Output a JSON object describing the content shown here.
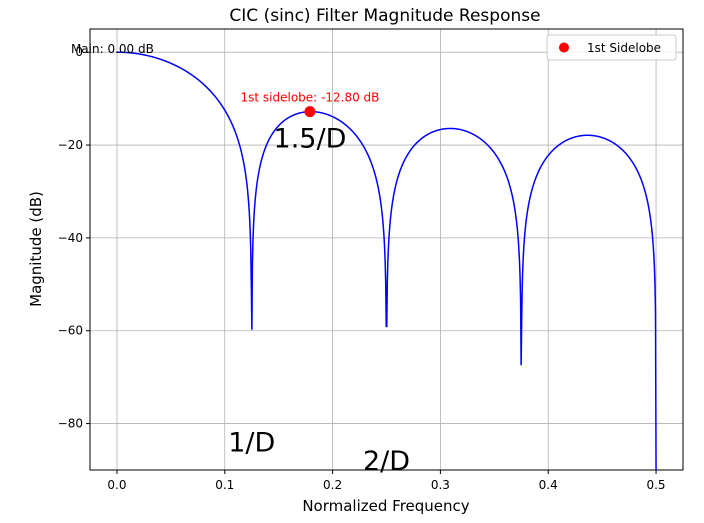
{
  "chart_data": {
    "type": "line",
    "title": "CIC (sinc) Filter Magnitude Response",
    "xlabel": "Normalized Frequency",
    "ylabel": "Magnitude (dB)",
    "xlim": [
      -0.025,
      0.525
    ],
    "ylim": [
      -90,
      5
    ],
    "xticks": [
      0.0,
      0.1,
      0.2,
      0.3,
      0.4,
      0.5
    ],
    "xtick_labels": [
      "0.0",
      "0.1",
      "0.2",
      "0.3",
      "0.4",
      "0.5"
    ],
    "yticks": [
      -80,
      -60,
      -40,
      -20,
      0
    ],
    "ytick_labels": [
      "−80",
      "−60",
      "−40",
      "−20",
      "0"
    ],
    "grid": true,
    "legend_position": "top-right",
    "series": [
      {
        "name": "",
        "color": "#0000ff",
        "style": "line",
        "formula": "20*log10(|sin(pi*D*f)/(D*sin(pi*f))|)",
        "decimation_factor": 8,
        "x_range": [
          0.0,
          0.5
        ]
      },
      {
        "name": "1st Sidelobe",
        "color": "#ff0000",
        "style": "marker",
        "x": [
          0.179
        ],
        "y": [
          -12.8
        ]
      }
    ],
    "annotations": [
      {
        "text": "Main: 0.00 dB",
        "x": 0.0,
        "y": 0.0,
        "color": "#000000"
      },
      {
        "text": "1st sidelobe: -12.80 dB",
        "x": 0.179,
        "y": -12.8,
        "color": "#ff0000"
      },
      {
        "text": "1.5/D",
        "x": 0.179,
        "y": -20.5,
        "color": "#000000"
      },
      {
        "text": "1/D",
        "x": 0.125,
        "y": -86.0,
        "color": "#000000"
      },
      {
        "text": "2/D",
        "x": 0.25,
        "y": -90.0,
        "color": "#000000"
      }
    ]
  }
}
